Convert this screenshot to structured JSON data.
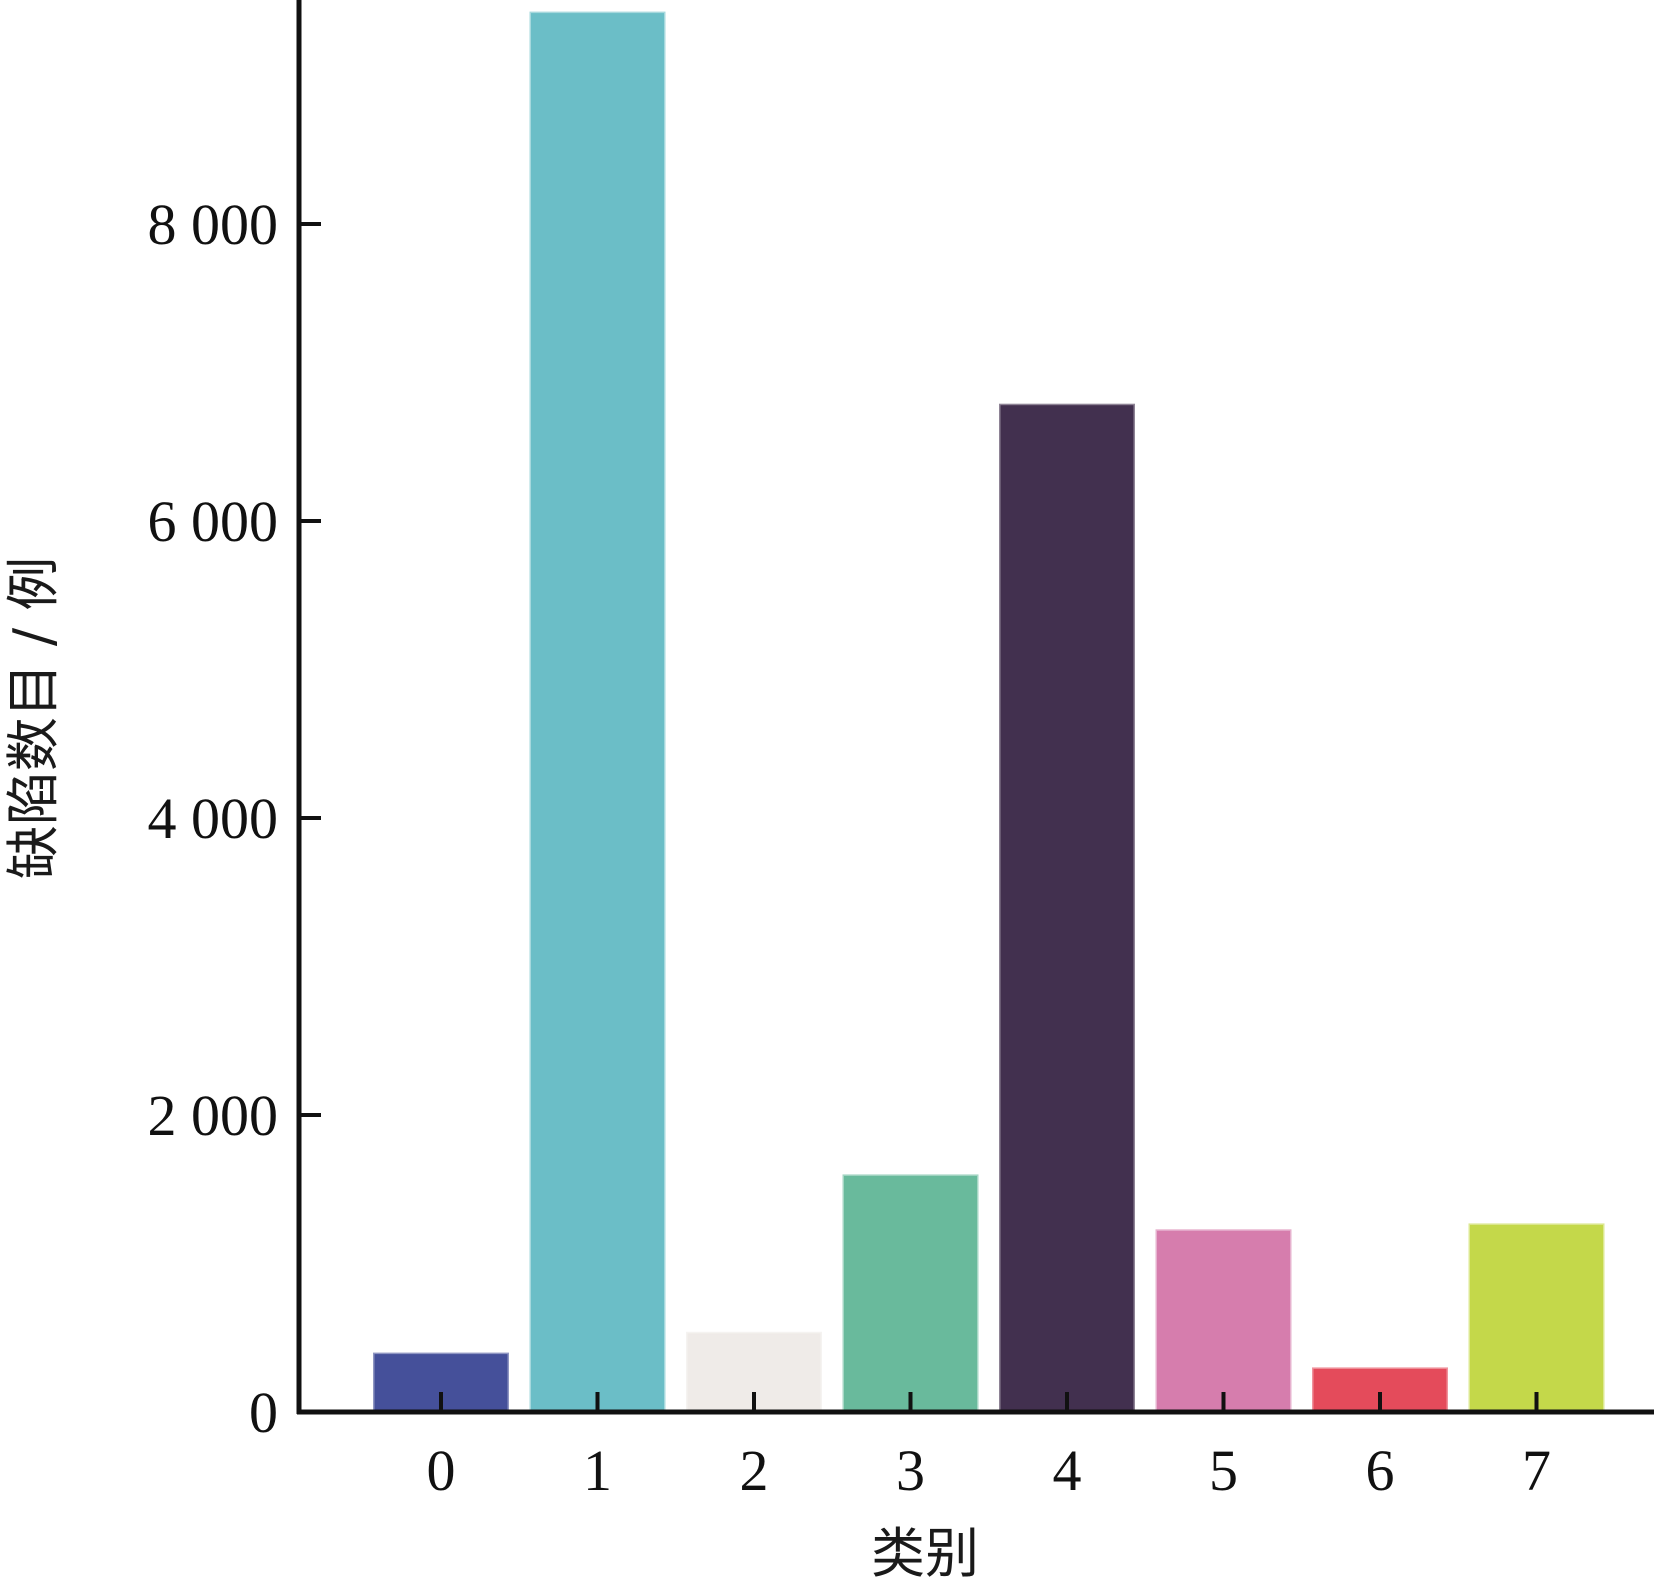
{
  "chart_data": {
    "type": "bar",
    "categories": [
      "0",
      "1",
      "2",
      "3",
      "4",
      "5",
      "6",
      "7"
    ],
    "values": [
      390,
      9420,
      530,
      1590,
      6780,
      1220,
      290,
      1260
    ],
    "colors": [
      "#45509a",
      "#6bbec7",
      "#efebe8",
      "#69ba9c",
      "#42304f",
      "#d67dad",
      "#e44b5b",
      "#c4d84a"
    ],
    "title": "",
    "xlabel": "类别",
    "ylabel": "缺陷数目 / 例",
    "ylim": [
      0,
      9500
    ],
    "yticks": [
      0,
      2000,
      4000,
      6000,
      8000
    ],
    "ytick_labels": [
      "0",
      "2 000",
      "4 000",
      "6 000",
      "8 000"
    ],
    "grid": false,
    "legend": "none"
  }
}
